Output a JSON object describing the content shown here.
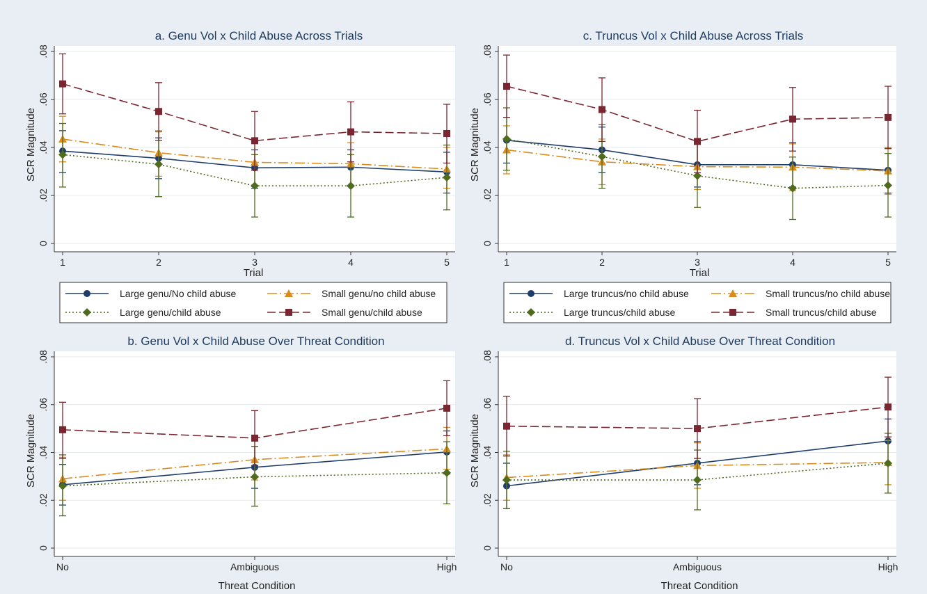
{
  "figure": {
    "background": "#e8eef3",
    "accent_title_color": "#1e3a5f"
  },
  "series_styles": [
    {
      "key": "large_no",
      "color": "#1f3d6b",
      "dash": "",
      "marker": "circle"
    },
    {
      "key": "small_no",
      "color": "#d98c1c",
      "dash": "14 4 2 4",
      "marker": "triangle"
    },
    {
      "key": "large_abuse",
      "color": "#4f6b1e",
      "dash": "2 3",
      "marker": "diamond"
    },
    {
      "key": "small_abuse",
      "color": "#7a2630",
      "dash": "12 5",
      "marker": "square"
    }
  ],
  "legends": [
    {
      "entries": [
        "Large genu/No child abuse",
        "Small genu/no child abuse",
        "Large genu/child abuse",
        "Small genu/child abuse"
      ]
    },
    {
      "entries": [
        "Large truncus/no child abuse",
        "Small truncus/no child abuse",
        "Large truncus/child abuse",
        "Small truncus/child abuse"
      ]
    }
  ],
  "chart_data": [
    {
      "id": "a",
      "type": "line",
      "title": "a.  Genu Vol x Child Abuse Across Trials",
      "xlabel": "Trial",
      "ylabel": "SCR Magnitude",
      "categories": [
        "1",
        "2",
        "3",
        "4",
        "5"
      ],
      "yticks": [
        "0",
        ".02",
        ".04",
        ".06",
        ".08"
      ],
      "ylim": [
        0,
        0.08
      ],
      "grid": true,
      "series": [
        {
          "name": "Large genu/No child abuse",
          "values": [
            0.0385,
            0.0355,
            0.0315,
            0.0318,
            0.0298
          ],
          "err_low": [
            0.0295,
            0.027,
            0.023,
            0.024,
            0.021
          ],
          "err_high": [
            0.047,
            0.044,
            0.039,
            0.039,
            0.038
          ]
        },
        {
          "name": "Small genu/no child abuse",
          "values": [
            0.0435,
            0.0378,
            0.0338,
            0.0332,
            0.031
          ],
          "err_low": [
            0.034,
            0.028,
            0.024,
            0.024,
            0.023
          ],
          "err_high": [
            0.053,
            0.047,
            0.043,
            0.042,
            0.04
          ]
        },
        {
          "name": "Large genu/child abuse",
          "values": [
            0.037,
            0.033,
            0.024,
            0.024,
            0.0275
          ],
          "err_low": [
            0.0235,
            0.0195,
            0.011,
            0.011,
            0.014
          ],
          "err_high": [
            0.05,
            0.0465,
            0.037,
            0.037,
            0.041
          ]
        },
        {
          "name": "Small genu/child abuse",
          "values": [
            0.0665,
            0.055,
            0.0428,
            0.0465,
            0.0458
          ],
          "err_low": [
            0.054,
            0.043,
            0.0305,
            0.034,
            0.0335
          ],
          "err_high": [
            0.079,
            0.067,
            0.055,
            0.059,
            0.058
          ]
        }
      ]
    },
    {
      "id": "b",
      "type": "line",
      "title": "b. Genu Vol x Child Abuse Over Threat Condition",
      "xlabel": "Threat Condition",
      "ylabel": "SCR Magnitude",
      "categories": [
        "No",
        "Ambiguous",
        "High"
      ],
      "yticks": [
        "0",
        ".02",
        ".04",
        ".06",
        ".08"
      ],
      "ylim": [
        0,
        0.08
      ],
      "grid": true,
      "series": [
        {
          "name": "Large genu/No child abuse",
          "values": [
            0.0265,
            0.0338,
            0.0402
          ],
          "err_low": [
            0.018,
            0.025,
            0.031
          ],
          "err_high": [
            0.035,
            0.0425,
            0.049
          ]
        },
        {
          "name": "Small genu/no child abuse",
          "values": [
            0.029,
            0.037,
            0.0415
          ],
          "err_low": [
            0.02,
            0.0285,
            0.033
          ],
          "err_high": [
            0.038,
            0.0455,
            0.0505
          ]
        },
        {
          "name": "Large genu/child abuse",
          "values": [
            0.026,
            0.0298,
            0.0315
          ],
          "err_low": [
            0.0135,
            0.0175,
            0.0185
          ],
          "err_high": [
            0.039,
            0.0425,
            0.0445
          ]
        },
        {
          "name": "Small genu/child abuse",
          "values": [
            0.0495,
            0.046,
            0.0585
          ],
          "err_low": [
            0.0375,
            0.0345,
            0.047
          ],
          "err_high": [
            0.061,
            0.0575,
            0.07
          ]
        }
      ]
    },
    {
      "id": "c",
      "type": "line",
      "title": "c.  Truncus Vol x Child Abuse Across Trials",
      "xlabel": "Trial",
      "ylabel": "SCR Magnitude",
      "categories": [
        "1",
        "2",
        "3",
        "4",
        "5"
      ],
      "yticks": [
        "0",
        ".02",
        ".04",
        ".06",
        ".08"
      ],
      "ylim": [
        0,
        0.08
      ],
      "grid": true,
      "series": [
        {
          "name": "Large truncus/no child abuse",
          "values": [
            0.043,
            0.039,
            0.0328,
            0.0328,
            0.0305
          ],
          "err_low": [
            0.0335,
            0.0295,
            0.0235,
            0.0235,
            0.021
          ],
          "err_high": [
            0.0525,
            0.0485,
            0.042,
            0.042,
            0.04
          ]
        },
        {
          "name": "Small truncus/no child abuse",
          "values": [
            0.039,
            0.034,
            0.032,
            0.0318,
            0.0302
          ],
          "err_low": [
            0.029,
            0.0245,
            0.0225,
            0.022,
            0.0205
          ],
          "err_high": [
            0.049,
            0.0435,
            0.0415,
            0.0415,
            0.04
          ]
        },
        {
          "name": "Large truncus/child abuse",
          "values": [
            0.0435,
            0.0362,
            0.0282,
            0.023,
            0.0242
          ],
          "err_low": [
            0.0305,
            0.023,
            0.015,
            0.01,
            0.011
          ],
          "err_high": [
            0.0565,
            0.0495,
            0.0415,
            0.036,
            0.0375
          ]
        },
        {
          "name": "Small truncus/child abuse",
          "values": [
            0.0655,
            0.0558,
            0.0425,
            0.0518,
            0.0525
          ],
          "err_low": [
            0.0525,
            0.0425,
            0.0295,
            0.0385,
            0.0395
          ],
          "err_high": [
            0.0785,
            0.069,
            0.0555,
            0.065,
            0.0655
          ]
        }
      ]
    },
    {
      "id": "d",
      "type": "line",
      "title": "d. Truncus Vol x Child Abuse Over Threat Condition",
      "xlabel": "Threat Condition",
      "ylabel": "SCR Magnitude",
      "categories": [
        "No",
        "Ambiguous",
        "High"
      ],
      "yticks": [
        "0",
        ".02",
        ".04",
        ".06",
        ".08"
      ],
      "ylim": [
        0,
        0.08
      ],
      "grid": true,
      "series": [
        {
          "name": "Large truncus/no child abuse",
          "values": [
            0.026,
            0.0355,
            0.0448
          ],
          "err_low": [
            0.0165,
            0.0265,
            0.0355
          ],
          "err_high": [
            0.0355,
            0.0445,
            0.054
          ]
        },
        {
          "name": "Small truncus/no child abuse",
          "values": [
            0.0295,
            0.0345,
            0.0358
          ],
          "err_low": [
            0.02,
            0.025,
            0.0265
          ],
          "err_high": [
            0.039,
            0.044,
            0.045
          ]
        },
        {
          "name": "Large truncus/child abuse",
          "values": [
            0.0285,
            0.0285,
            0.0355
          ],
          "err_low": [
            0.0165,
            0.016,
            0.023
          ],
          "err_high": [
            0.0405,
            0.041,
            0.048
          ]
        },
        {
          "name": "Small truncus/child abuse",
          "values": [
            0.051,
            0.05,
            0.059
          ],
          "err_low": [
            0.0385,
            0.0375,
            0.0465
          ],
          "err_high": [
            0.0635,
            0.0625,
            0.0715
          ]
        }
      ]
    }
  ]
}
